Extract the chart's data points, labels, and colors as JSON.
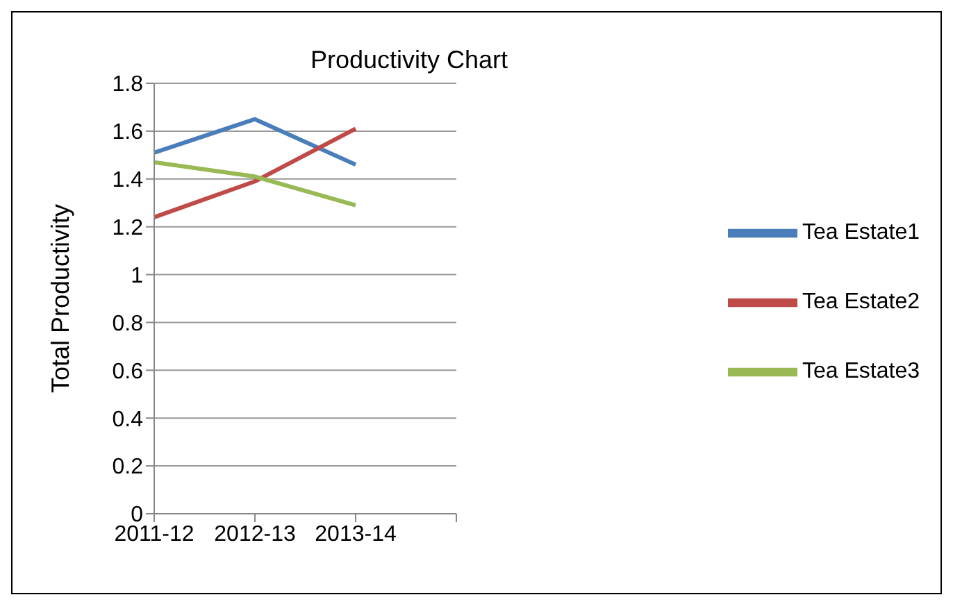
{
  "chart_data": {
    "type": "line",
    "title": "Productivity Chart",
    "ylabel": "Total Productivity",
    "categories": [
      "2011-12",
      "2012-13",
      "2013-14",
      null
    ],
    "series": [
      {
        "name": "Tea Estate1",
        "color": "#4a7ebb",
        "values": [
          1.51,
          1.65,
          1.46,
          null
        ]
      },
      {
        "name": "Tea Estate2",
        "color": "#be4b48",
        "values": [
          1.24,
          1.39,
          1.61,
          null
        ]
      },
      {
        "name": "Tea Estate3",
        "color": "#98b954",
        "values": [
          1.47,
          1.41,
          1.29,
          null
        ]
      }
    ],
    "ylim": [
      0,
      1.8
    ],
    "yticks": [
      0,
      0.2,
      0.4,
      0.6,
      0.8,
      1,
      1.2,
      1.4,
      1.6,
      1.8
    ],
    "grid": "y",
    "legend": "right",
    "marker": "none",
    "line_style": "solid"
  }
}
